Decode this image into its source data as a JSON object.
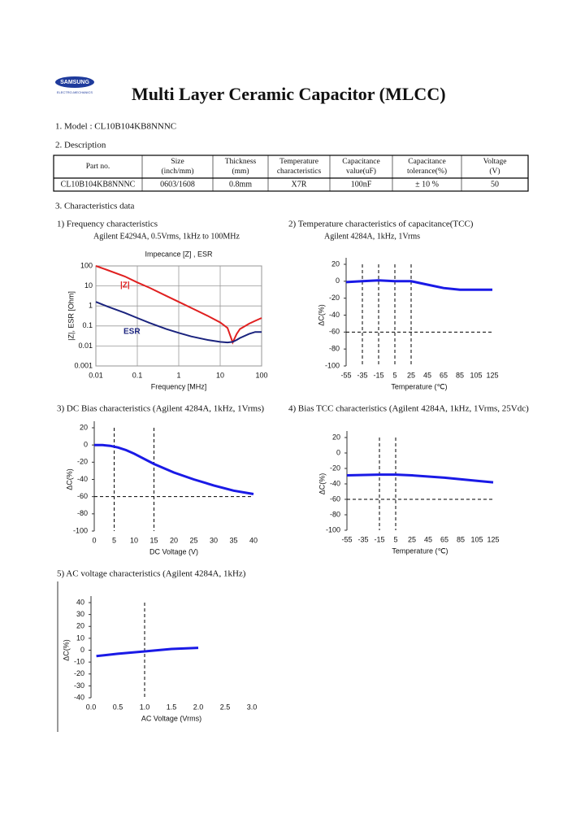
{
  "logo": {
    "brand": "SAMSUNG",
    "sub": "ELECTRO-MECHANICS"
  },
  "title": "Multi Layer Ceramic Capacitor (MLCC)",
  "model": "1. Model : CL10B104KB8NNNC",
  "description_heading": "2. Description",
  "table": {
    "header": [
      [
        "Part no."
      ],
      [
        "Size",
        "(inch/mm)"
      ],
      [
        "Thickness",
        "(mm)"
      ],
      [
        "Temperature",
        "characteristics"
      ],
      [
        "Capacitance",
        "value(uF)"
      ],
      [
        "Capacitance",
        "tolerance(%)"
      ],
      [
        "Voltage",
        "(V)"
      ]
    ],
    "rows": [
      [
        "CL10B104KB8NNNC",
        "0603/1608",
        "0.8mm",
        "X7R",
        "100nF",
        "± 10 %",
        "50"
      ]
    ]
  },
  "characteristics_heading": "3. Characteristics data",
  "chart_data": [
    {
      "type": "line",
      "heading": "1) Frequency characteristics",
      "subtitle": "Agilent E4294A, 0.5Vrms, 1kHz to 100MHz",
      "title": "Impecance [Z] , ESR",
      "x_label": "Frequency [MHz]",
      "y_label": "|Z|, ESR [Ohm]",
      "log_x": true,
      "log_y": true,
      "grid": true,
      "xlim": [
        0.01,
        100
      ],
      "ylim": [
        0.001,
        100
      ],
      "xticks": [
        0.01,
        0.1,
        1,
        10,
        100
      ],
      "yticks": [
        0.001,
        0.01,
        0.1,
        1,
        10,
        100
      ],
      "x": [
        0.01,
        0.02,
        0.05,
        0.1,
        0.2,
        0.5,
        1,
        2,
        5,
        10,
        15,
        20,
        25,
        30,
        50,
        70,
        100
      ],
      "series": [
        {
          "name": "|Z|",
          "color": "#e02020",
          "values": [
            100,
            60,
            30,
            15,
            8,
            3.2,
            1.6,
            0.8,
            0.32,
            0.15,
            0.08,
            0.015,
            0.04,
            0.07,
            0.13,
            0.18,
            0.25
          ]
        },
        {
          "name": "ESR",
          "color": "#1a237e",
          "values": [
            1.6,
            0.9,
            0.45,
            0.25,
            0.14,
            0.07,
            0.045,
            0.03,
            0.02,
            0.016,
            0.015,
            0.016,
            0.02,
            0.025,
            0.04,
            0.05,
            0.05
          ]
        }
      ]
    },
    {
      "type": "line",
      "heading": "2) Temperature characteristics of capacitance(TCC)",
      "subtitle": "Agilent 4284A, 1kHz, 1Vrms",
      "x_label": "Temperature (℃)",
      "y_label": "ΔC(%)",
      "xlim": [
        -55,
        125
      ],
      "ylim": [
        -100,
        20
      ],
      "xticks": [
        -55,
        -35,
        -15,
        5,
        25,
        45,
        65,
        85,
        105,
        125
      ],
      "yticks": [
        20,
        0,
        -20,
        -40,
        -60,
        -80,
        -100
      ],
      "ref_x": [
        -35,
        -15,
        5,
        25
      ],
      "ref_y": [
        -60
      ],
      "x": [
        -55,
        -35,
        -15,
        5,
        25,
        45,
        65,
        85,
        105,
        125
      ],
      "series": [
        {
          "color": "#1a1ae6",
          "values": [
            -1,
            0,
            1,
            0,
            0,
            -4,
            -8,
            -10,
            -10,
            -10
          ]
        }
      ]
    },
    {
      "type": "line",
      "heading": "3) DC Bias characteristics (Agilent 4284A, 1kHz, 1Vrms)",
      "x_label": "DC Voltage (V)",
      "y_label": "ΔC(%)",
      "xlim": [
        0,
        40
      ],
      "ylim": [
        -100,
        20
      ],
      "xticks": [
        0,
        5,
        10,
        15,
        20,
        25,
        30,
        35,
        40
      ],
      "yticks": [
        20,
        0,
        -20,
        -40,
        -60,
        -80,
        -100
      ],
      "ref_x": [
        5,
        15
      ],
      "ref_y": [
        -60
      ],
      "x": [
        0,
        2,
        4,
        6,
        8,
        10,
        15,
        20,
        25,
        30,
        35,
        40
      ],
      "series": [
        {
          "color": "#1a1ae6",
          "values": [
            0,
            0,
            -1,
            -3,
            -6,
            -10,
            -22,
            -32,
            -40,
            -47,
            -53,
            -57
          ]
        }
      ]
    },
    {
      "type": "line",
      "heading": "4) Bias TCC characteristics (Agilent 4284A, 1kHz, 1Vrms, 25Vdc)",
      "x_label": "Temperature (℃)",
      "y_label": "ΔC(%)",
      "xlim": [
        -55,
        125
      ],
      "ylim": [
        -100,
        20
      ],
      "xticks": [
        -55,
        -35,
        -15,
        5,
        25,
        45,
        65,
        85,
        105,
        125
      ],
      "yticks": [
        20,
        0,
        -20,
        -40,
        -60,
        -80,
        -100
      ],
      "ref_x": [
        -15,
        5
      ],
      "ref_y": [
        -60
      ],
      "x": [
        -55,
        -15,
        5,
        25,
        65,
        105,
        125
      ],
      "series": [
        {
          "color": "#1a1ae6",
          "values": [
            -29,
            -28,
            -28,
            -29,
            -32,
            -36,
            -38
          ]
        }
      ]
    },
    {
      "type": "line",
      "heading": "5) AC voltage characteristics (Agilent 4284A, 1kHz)",
      "x_label": "AC Voltage (Vrms)",
      "y_label": "ΔC(%)",
      "xlim": [
        0,
        3
      ],
      "ylim": [
        -40,
        40
      ],
      "xticks": [
        {
          "value": 0,
          "label": "0.0"
        },
        0.5,
        {
          "value": 1,
          "label": "1.0"
        },
        1.5,
        {
          "value": 2,
          "label": "2.0"
        },
        2.5,
        {
          "value": 3,
          "label": "3.0"
        }
      ],
      "yticks": [
        40,
        30,
        20,
        10,
        0,
        -10,
        -20,
        -30,
        -40
      ],
      "ref_x": [
        1
      ],
      "x": [
        0.1,
        0.5,
        1,
        1.5,
        2
      ],
      "series": [
        {
          "color": "#1a1ae6",
          "values": [
            -5,
            -3,
            -1,
            1,
            2
          ]
        }
      ]
    }
  ]
}
